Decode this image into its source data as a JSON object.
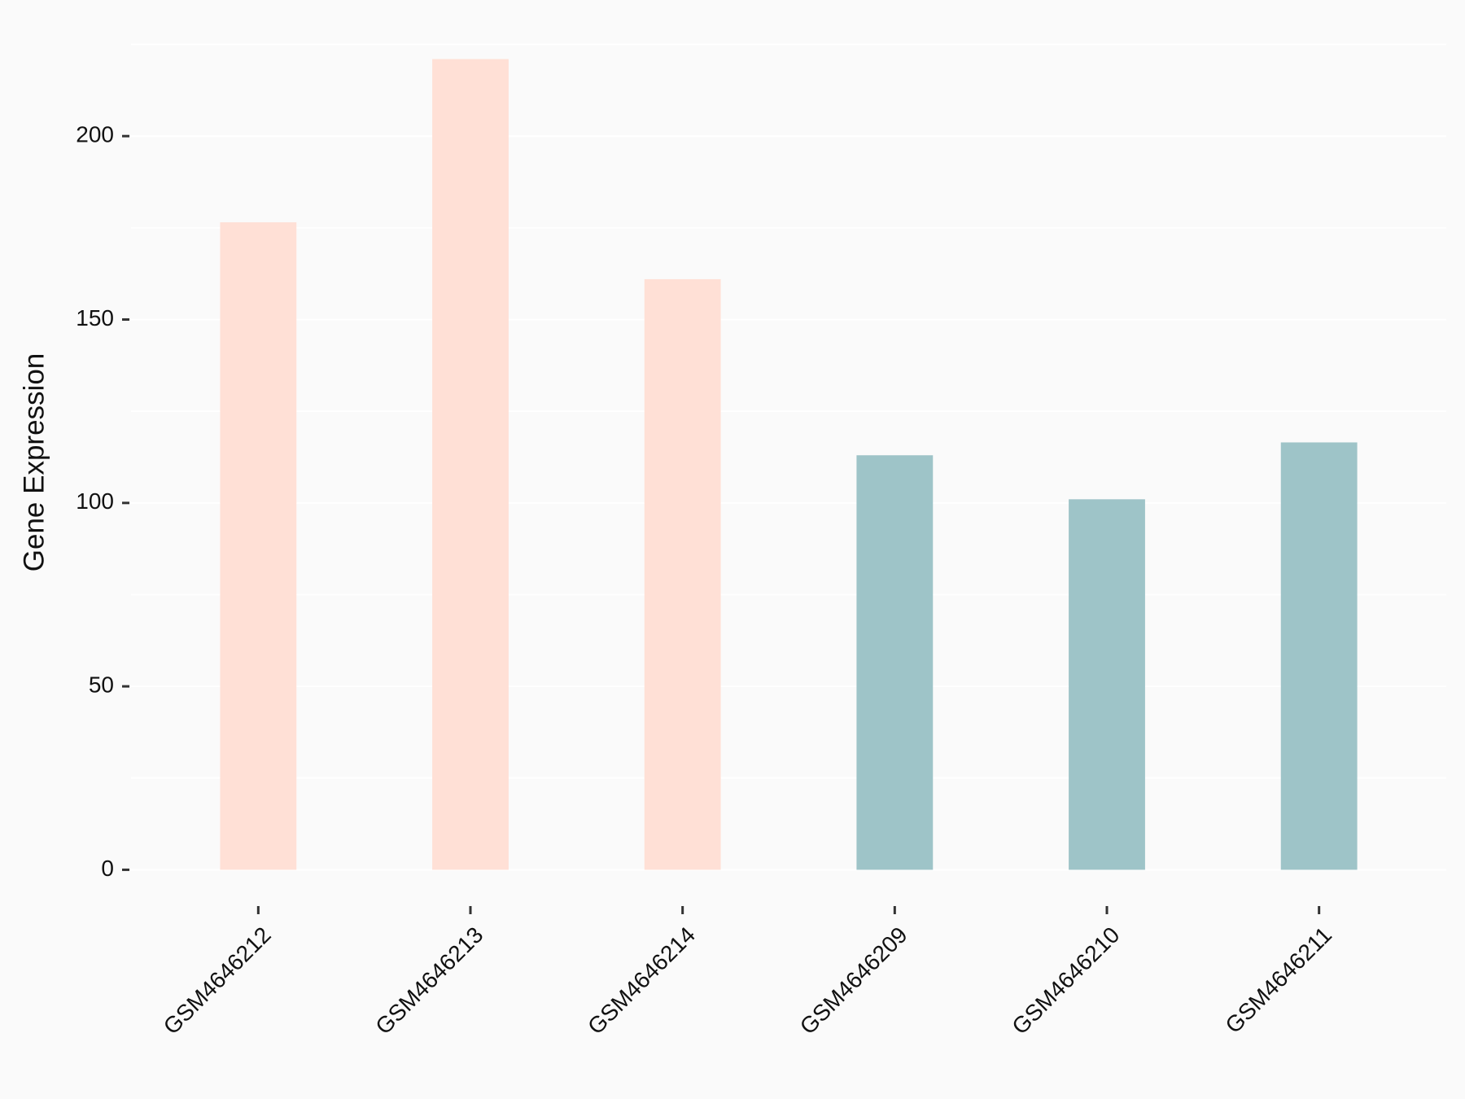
{
  "chart_data": {
    "type": "bar",
    "y_axis_label": "Gene Expression",
    "categories": [
      "GSM4646212",
      "GSM4646213",
      "GSM4646214",
      "GSM4646209",
      "GSM4646210",
      "GSM4646211"
    ],
    "values": [
      176.5,
      221,
      161,
      113,
      101,
      116.5
    ],
    "colors": [
      "#FFE0D6",
      "#FFE0D6",
      "#FFE0D6",
      "#9EC4C8",
      "#9EC4C8",
      "#9EC4C8"
    ],
    "ylim": [
      -11,
      232
    ],
    "yticks": [
      0,
      50,
      100,
      150,
      200
    ],
    "minor_grid": [
      25,
      75,
      125,
      175,
      225
    ],
    "grid": true
  }
}
